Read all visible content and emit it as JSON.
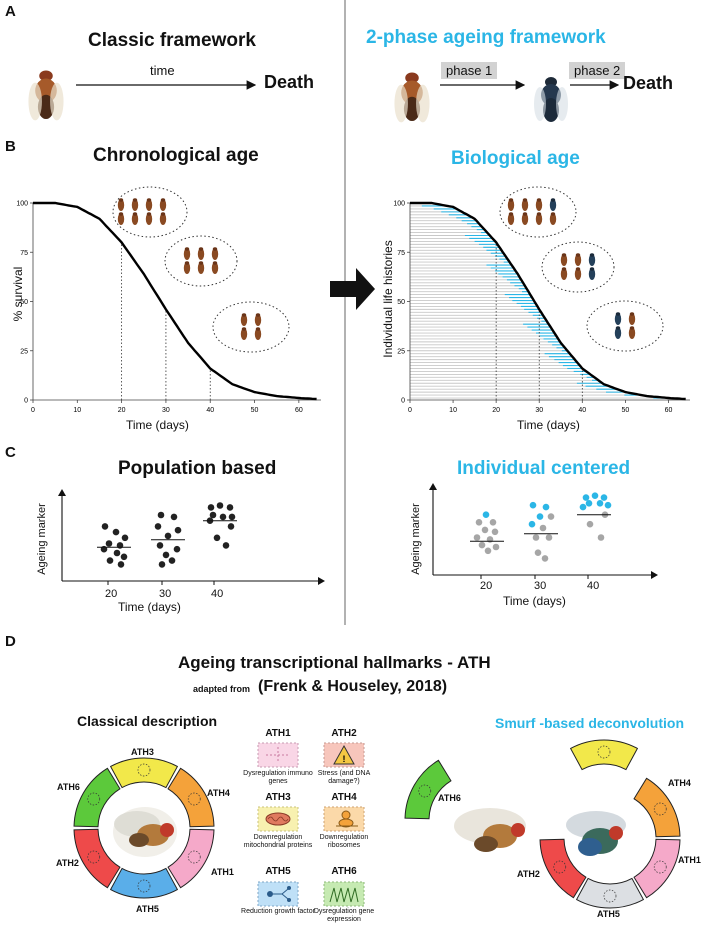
{
  "panels": {
    "a": "A",
    "b": "B",
    "c": "C",
    "d": "D"
  },
  "colors": {
    "accent": "#2bb6e6",
    "smurf": "#2bb6e6",
    "healthy": "#a6a6a6",
    "ath1": "#f5a9c9",
    "ath2": "#ee4a4a",
    "ath3": "#f2e84a",
    "ath4": "#f4a23a",
    "ath5": "#5aaee9",
    "ath6": "#5cc93b"
  },
  "row_a": {
    "left_title": "Classic framework",
    "arrow_label": "time",
    "death_left": "Death",
    "right_title": "2-phase ageing framework",
    "phase1": "phase 1",
    "phase2": "phase 2",
    "death_right": "Death"
  },
  "row_b": {
    "left_title": "Chronological age",
    "right_title": "Biological age",
    "left_ylabel": "% survival",
    "right_ylabel": "Individual life histories",
    "xlabel": "Time (days)"
  },
  "row_c": {
    "left_title": "Population based",
    "right_title": "Individual centered",
    "ylabel": "Ageing marker",
    "xlabel": "Time (days)",
    "ticks": [
      "20",
      "30",
      "40"
    ]
  },
  "row_d": {
    "title": "Ageing transcriptional hallmarks - ATH",
    "adapted_prefix": "adapted from",
    "adapted_ref": "(Frenk & Houseley, 2018)",
    "left_title": "Classical description",
    "right_title": "Smurf -based deconvolution",
    "legend": [
      {
        "id": "ATH1",
        "desc": "Dysregulation immuno genes",
        "icon": "crosshair-icon"
      },
      {
        "id": "ATH2",
        "desc": "Stress (and DNA damage?)",
        "icon": "warning-icon"
      },
      {
        "id": "ATH3",
        "desc": "Downregulation mitochondrial proteins",
        "icon": "mitochondrion-icon"
      },
      {
        "id": "ATH4",
        "desc": "Downregulation ribosomes",
        "icon": "ribosome-icon"
      },
      {
        "id": "ATH5",
        "desc": "Reduction growth factor",
        "icon": "signaling-icon"
      },
      {
        "id": "ATH6",
        "desc": "Dysregulation gene expression",
        "icon": "zigzag-icon"
      }
    ]
  },
  "chart_data": [
    {
      "type": "line",
      "title": "Chronological age",
      "xlabel": "Time (days)",
      "ylabel": "% survival",
      "xlim": [
        0,
        65
      ],
      "ylim": [
        0,
        100
      ],
      "xticks": [
        "0",
        "10",
        "20",
        "30",
        "40",
        "50",
        "60"
      ],
      "yticks": [
        "0",
        "25",
        "50",
        "75",
        "100"
      ],
      "series": [
        {
          "x": [
            0,
            5,
            10,
            15,
            20,
            25,
            30,
            35,
            40,
            45,
            50,
            55,
            60,
            64
          ],
          "values": [
            100,
            100,
            98,
            92,
            80,
            64,
            46,
            29,
            16,
            8,
            4,
            2,
            1,
            0.5
          ]
        }
      ],
      "markers_x": [
        20,
        30,
        40
      ]
    },
    {
      "type": "line",
      "title": "Biological age",
      "xlabel": "Time (days)",
      "ylabel": "Individual life histories",
      "xlim": [
        0,
        65
      ],
      "ylim": [
        0,
        100
      ],
      "xticks": [
        "0",
        "10",
        "20",
        "30",
        "40",
        "50",
        "60"
      ],
      "yticks": [
        "0",
        "25",
        "50",
        "75",
        "100"
      ],
      "series": [
        {
          "x": [
            0,
            5,
            10,
            15,
            20,
            25,
            30,
            35,
            40,
            45,
            50,
            55,
            60,
            64
          ],
          "values": [
            100,
            100,
            98,
            92,
            80,
            64,
            46,
            29,
            16,
            8,
            4,
            2,
            1,
            0.5
          ]
        }
      ],
      "markers_x": [
        20,
        30,
        40
      ]
    },
    {
      "type": "scatter",
      "title": "Population based",
      "xlabel": "Time (days)",
      "ylabel": "Ageing marker",
      "categories": [
        "20",
        "30",
        "40"
      ],
      "groups": [
        {
          "x": 20,
          "points": [
            [
              -9,
              14
            ],
            [
              2,
              11
            ],
            [
              11,
              8
            ],
            [
              -5,
              5
            ],
            [
              6,
              4
            ],
            [
              -10,
              2
            ],
            [
              3,
              0
            ],
            [
              10,
              -2
            ],
            [
              -4,
              -4
            ],
            [
              7,
              -6
            ]
          ],
          "mean": 3
        },
        {
          "x": 30,
          "points": [
            [
              -7,
              20
            ],
            [
              6,
              19
            ],
            [
              -10,
              14
            ],
            [
              10,
              12
            ],
            [
              0,
              9
            ],
            [
              -8,
              4
            ],
            [
              9,
              2
            ],
            [
              -2,
              -1
            ],
            [
              4,
              -4
            ],
            [
              -6,
              -6
            ]
          ],
          "mean": 7
        },
        {
          "x": 40,
          "points": [
            [
              -9,
              24
            ],
            [
              0,
              25
            ],
            [
              10,
              24
            ],
            [
              -7,
              20
            ],
            [
              3,
              19
            ],
            [
              12,
              19
            ],
            [
              -10,
              17
            ],
            [
              11,
              14
            ],
            [
              -3,
              8
            ],
            [
              6,
              4
            ]
          ],
          "mean": 17
        }
      ]
    },
    {
      "type": "scatter",
      "title": "Individual centered",
      "xlabel": "Time (days)",
      "ylabel": "Ageing marker",
      "categories": [
        "20",
        "30",
        "40"
      ],
      "groups": [
        {
          "x": 20,
          "points": [
            [
              -1,
              17,
              1
            ],
            [
              -8,
              13,
              0
            ],
            [
              6,
              13,
              0
            ],
            [
              -2,
              9,
              0
            ],
            [
              8,
              8,
              0
            ],
            [
              -10,
              5,
              0
            ],
            [
              3,
              4,
              0
            ],
            [
              -5,
              1,
              0
            ],
            [
              9,
              0,
              0
            ],
            [
              1,
              -2,
              0
            ]
          ],
          "mean": 3
        },
        {
          "x": 30,
          "points": [
            [
              -8,
              22,
              1
            ],
            [
              5,
              21,
              1
            ],
            [
              -1,
              16,
              1
            ],
            [
              10,
              16,
              0
            ],
            [
              -9,
              12,
              1
            ],
            [
              2,
              10,
              0
            ],
            [
              -5,
              5,
              0
            ],
            [
              8,
              5,
              0
            ],
            [
              -3,
              -3,
              0
            ],
            [
              4,
              -6,
              0
            ]
          ],
          "mean": 7
        },
        {
          "x": 40,
          "points": [
            [
              -8,
              26,
              1
            ],
            [
              1,
              27,
              1
            ],
            [
              10,
              26,
              1
            ],
            [
              -5,
              23,
              1
            ],
            [
              6,
              23,
              1
            ],
            [
              14,
              22,
              1
            ],
            [
              -11,
              21,
              1
            ],
            [
              11,
              17,
              0
            ],
            [
              -4,
              12,
              0
            ],
            [
              7,
              5,
              0
            ]
          ],
          "mean": 17
        }
      ]
    }
  ]
}
